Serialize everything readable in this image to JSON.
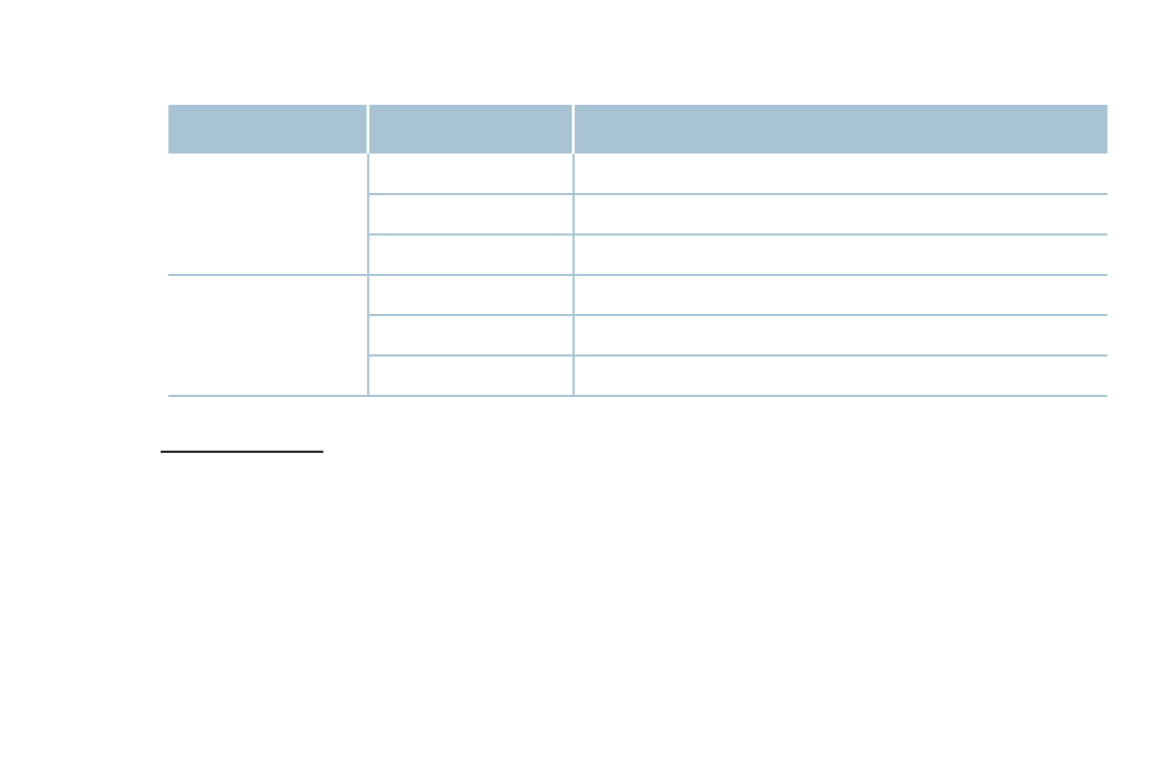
{
  "page": {
    "background": "#ffffff"
  },
  "table": {
    "header": {
      "fill": "#a8c4d4",
      "cells": [
        {
          "label": ""
        },
        {
          "label": ""
        },
        {
          "label": ""
        }
      ]
    },
    "grid_color": "#aac6d5",
    "groups": [
      {
        "label": "",
        "rows": [
          {
            "c2": "",
            "c3": ""
          },
          {
            "c2": "",
            "c3": ""
          },
          {
            "c2": "",
            "c3": ""
          }
        ]
      },
      {
        "label": "",
        "rows": [
          {
            "c2": "",
            "c3": ""
          },
          {
            "c2": "",
            "c3": ""
          },
          {
            "c2": "",
            "c3": ""
          }
        ]
      }
    ]
  },
  "footnote_separator": {
    "color": "#1f1f1f"
  }
}
